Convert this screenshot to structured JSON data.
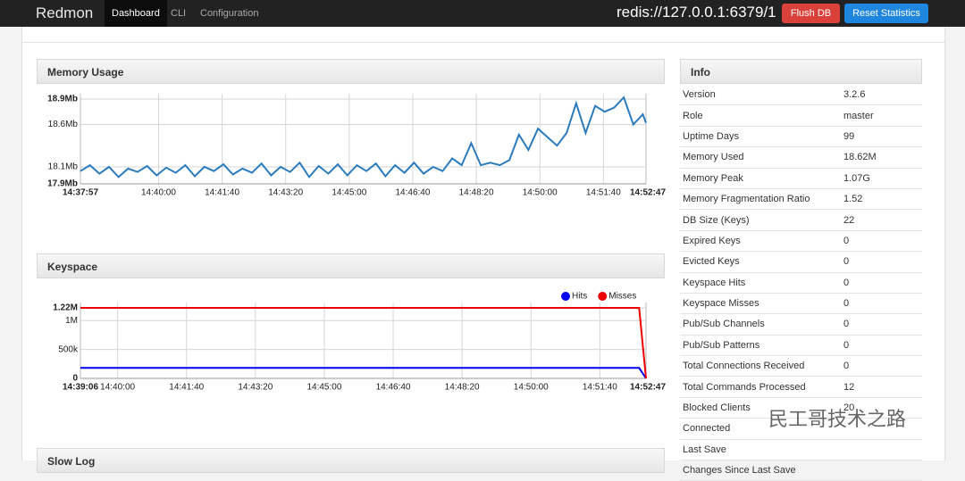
{
  "nav": {
    "brand": "Redmon",
    "tabs": [
      "Dashboard",
      "CLI",
      "Configuration"
    ],
    "server": "redis://127.0.0.1:6379/1",
    "buttons": [
      "Flush DB",
      "Reset Statistics"
    ]
  },
  "chart_data": [
    {
      "type": "line",
      "title": "Memory Usage",
      "xlim": [
        {
          "value": 52677,
          "label": "14:37:57"
        },
        {
          "value": 53567,
          "label": "14:52:47"
        }
      ],
      "xticks": [
        {
          "value": 52800,
          "label": "14:40:00"
        },
        {
          "value": 52900,
          "label": "14:41:40"
        },
        {
          "value": 53000,
          "label": "14:43:20"
        },
        {
          "value": 53100,
          "label": "14:45:00"
        },
        {
          "value": 53200,
          "label": "14:46:40"
        },
        {
          "value": 53300,
          "label": "14:48:20"
        },
        {
          "value": 53400,
          "label": "14:50:00"
        },
        {
          "value": 53500,
          "label": "14:51:40"
        }
      ],
      "ylim": [
        17.9,
        18.9
      ],
      "yticks": [
        {
          "value": 18.9,
          "label": "18.9Mb"
        },
        {
          "value": 18.6,
          "label": "18.6Mb"
        },
        {
          "value": 18.1,
          "label": "18.1Mb"
        },
        {
          "value": 17.9,
          "label": "17.9Mb"
        }
      ],
      "grid": true,
      "x": [
        52677,
        52692,
        52707,
        52722,
        52737,
        52752,
        52767,
        52782,
        52797,
        52812,
        52827,
        52842,
        52857,
        52872,
        52887,
        52902,
        52917,
        52932,
        52947,
        52962,
        52977,
        52992,
        53007,
        53022,
        53037,
        53052,
        53067,
        53082,
        53097,
        53112,
        53127,
        53142,
        53157,
        53172,
        53187,
        53202,
        53217,
        53232,
        53247,
        53262,
        53277,
        53292,
        53307,
        53322,
        53337,
        53352,
        53367,
        53382,
        53397,
        53412,
        53427,
        53442,
        53457,
        53472,
        53487,
        53502,
        53517,
        53532,
        53547,
        53562,
        53567
      ],
      "series": [
        {
          "color": "#2b7bbd",
          "values": [
            18.05,
            18.12,
            18.02,
            18.1,
            17.98,
            18.08,
            18.04,
            18.11,
            18.0,
            18.09,
            18.03,
            18.12,
            17.99,
            18.1,
            18.05,
            18.13,
            18.01,
            18.08,
            18.03,
            18.14,
            18.0,
            18.1,
            18.04,
            18.15,
            17.98,
            18.11,
            18.02,
            18.13,
            18.0,
            18.12,
            18.05,
            18.14,
            17.99,
            18.12,
            18.03,
            18.15,
            18.02,
            18.1,
            18.05,
            18.2,
            18.12,
            18.38,
            18.12,
            18.15,
            18.12,
            18.18,
            18.48,
            18.3,
            18.55,
            18.45,
            18.35,
            18.5,
            18.85,
            18.5,
            18.82,
            18.75,
            18.8,
            18.92,
            18.6,
            18.72,
            18.62
          ]
        }
      ]
    },
    {
      "type": "line",
      "title": "Keyspace",
      "xlim": [
        {
          "value": 52746,
          "label": "14:39:06"
        },
        {
          "value": 53567,
          "label": "14:52:47"
        }
      ],
      "xticks": [
        {
          "value": 52800,
          "label": "14:40:00"
        },
        {
          "value": 52900,
          "label": "14:41:40"
        },
        {
          "value": 53000,
          "label": "14:43:20"
        },
        {
          "value": 53100,
          "label": "14:45:00"
        },
        {
          "value": 53200,
          "label": "14:46:40"
        },
        {
          "value": 53300,
          "label": "14:48:20"
        },
        {
          "value": 53400,
          "label": "14:50:00"
        },
        {
          "value": 53500,
          "label": "14:51:40"
        }
      ],
      "ylim": [
        0,
        1220000
      ],
      "yticks": [
        {
          "value": 1220000,
          "label": "1.22M"
        },
        {
          "value": 1000000,
          "label": "1M"
        },
        {
          "value": 500000,
          "label": "500k"
        },
        0
      ],
      "grid": true,
      "legend": "top-right",
      "x": [
        52746,
        53557,
        53567
      ],
      "series": [
        {
          "name": "Hits",
          "color": "#0000ee",
          "values": [
            180000,
            180000,
            0
          ]
        },
        {
          "name": "Misses",
          "color": "#ee0000",
          "values": [
            1220000,
            1220000,
            0
          ]
        }
      ]
    }
  ],
  "info": {
    "title": "Info",
    "rows": [
      [
        "Version",
        "3.2.6"
      ],
      [
        "Role",
        "master"
      ],
      [
        "Uptime Days",
        "99"
      ],
      [
        "Memory Used",
        "18.62M"
      ],
      [
        "Memory Peak",
        "1.07G"
      ],
      [
        "Memory Fragmentation Ratio",
        "1.52"
      ],
      [
        "DB Size (Keys)",
        "22"
      ],
      [
        "Expired Keys",
        "0"
      ],
      [
        "Evicted Keys",
        "0"
      ],
      [
        "Keyspace Hits",
        "0"
      ],
      [
        "Keyspace Misses",
        "0"
      ],
      [
        "Pub/Sub Channels",
        "0"
      ],
      [
        "Pub/Sub Patterns",
        "0"
      ],
      [
        "Total Connections Received",
        "0"
      ],
      [
        "Total Commands Processed",
        "12"
      ],
      [
        "Blocked Clients",
        "20"
      ],
      [
        "Connected"
      ],
      [
        "Last Save"
      ],
      [
        "Changes Since Last Save"
      ]
    ]
  },
  "slowlog": {
    "title": "Slow Log"
  },
  "watermark": "民工哥技术之路"
}
